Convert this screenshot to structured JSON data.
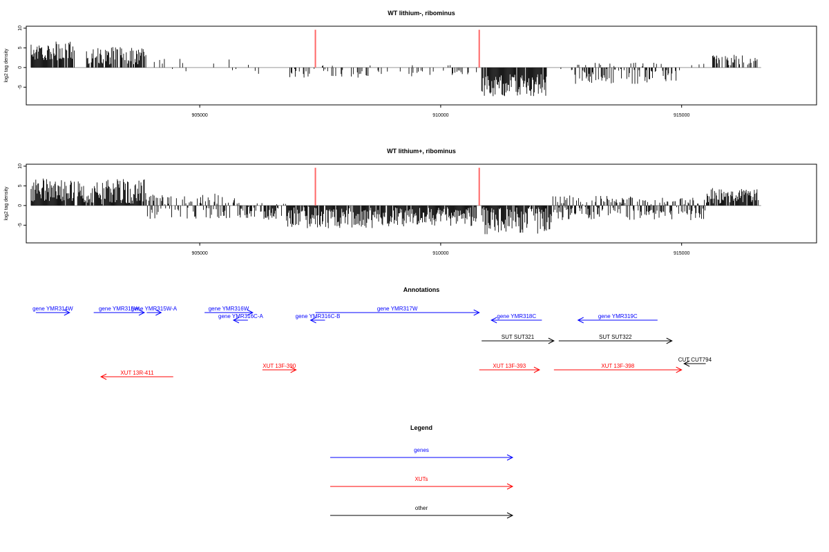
{
  "chart_data": [
    {
      "type": "bar",
      "title": "WT lithium-, ribominus",
      "ylabel": "log2 tag density",
      "xlim": [
        901400,
        917800
      ],
      "ylim": [
        -9.5,
        10.5
      ],
      "yticks": [
        "10",
        "5",
        "0",
        "-5"
      ],
      "ytick_values": [
        10,
        5,
        0,
        -5
      ],
      "xticks": [
        "905000",
        "910000",
        "915000"
      ],
      "xtick_values": [
        905000,
        910000,
        915000
      ],
      "highlight_color": "#ff6666",
      "highlights": [
        {
          "x": 907400,
          "y": 9.6
        },
        {
          "x": 910800,
          "y": 9.6
        }
      ],
      "segments": [
        {
          "from": 901500,
          "to": 902400,
          "level": 4.2,
          "spread": 2.5,
          "density": 0.9
        },
        {
          "from": 902650,
          "to": 903900,
          "level": 3.0,
          "spread": 2.2,
          "density": 0.8
        },
        {
          "from": 904000,
          "to": 905800,
          "level": 0.0,
          "spread": 2.5,
          "density": 0.12
        },
        {
          "from": 905800,
          "to": 906800,
          "level": 0.0,
          "spread": 2.0,
          "density": 0.05
        },
        {
          "from": 906800,
          "to": 908600,
          "level": -1.0,
          "spread": 1.6,
          "density": 0.35
        },
        {
          "from": 908600,
          "to": 910750,
          "level": -0.8,
          "spread": 1.6,
          "density": 0.25
        },
        {
          "from": 910850,
          "to": 912200,
          "level": -4.5,
          "spread": 2.8,
          "density": 0.95
        },
        {
          "from": 912200,
          "to": 912700,
          "level": 0.0,
          "spread": 0.8,
          "density": 0.05
        },
        {
          "from": 912700,
          "to": 914900,
          "level": -1.5,
          "spread": 2.8,
          "density": 0.55
        },
        {
          "from": 914900,
          "to": 915600,
          "level": 0.0,
          "spread": 1.0,
          "density": 0.1
        },
        {
          "from": 915600,
          "to": 916600,
          "level": 2.0,
          "spread": 1.5,
          "density": 0.45
        }
      ]
    },
    {
      "type": "bar",
      "title": "WT lithium+, ribominus",
      "ylabel": "log2 tag density",
      "xlim": [
        901400,
        917800
      ],
      "ylim": [
        -9.5,
        10.5
      ],
      "yticks": [
        "10",
        "5",
        "0",
        "-5"
      ],
      "ytick_values": [
        10,
        5,
        0,
        -5
      ],
      "xticks": [
        "905000",
        "910000",
        "915000"
      ],
      "xtick_values": [
        905000,
        910000,
        915000
      ],
      "highlight_color": "#ff6666",
      "highlights": [
        {
          "x": 907400,
          "y": 9.6
        },
        {
          "x": 910800,
          "y": 9.6
        }
      ],
      "segments": [
        {
          "from": 901500,
          "to": 902400,
          "level": 4.0,
          "spread": 3.0,
          "density": 0.95
        },
        {
          "from": 902450,
          "to": 903900,
          "level": 3.5,
          "spread": 3.2,
          "density": 0.95
        },
        {
          "from": 903900,
          "to": 905800,
          "level": -0.2,
          "spread": 3.2,
          "density": 0.7
        },
        {
          "from": 905800,
          "to": 906800,
          "level": -1.5,
          "spread": 2.2,
          "density": 0.7
        },
        {
          "from": 906800,
          "to": 908600,
          "level": -3.0,
          "spread": 2.8,
          "density": 0.9
        },
        {
          "from": 908600,
          "to": 910750,
          "level": -2.8,
          "spread": 2.5,
          "density": 0.9
        },
        {
          "from": 910850,
          "to": 912300,
          "level": -3.5,
          "spread": 3.8,
          "density": 0.98
        },
        {
          "from": 912300,
          "to": 914000,
          "level": -0.5,
          "spread": 3.2,
          "density": 0.85
        },
        {
          "from": 914000,
          "to": 915500,
          "level": -0.8,
          "spread": 3.0,
          "density": 0.8
        },
        {
          "from": 915500,
          "to": 916600,
          "level": 2.5,
          "spread": 2.0,
          "density": 0.85
        }
      ]
    }
  ],
  "annotations": {
    "title": "Annotations",
    "features": [
      {
        "label": "gene YMR314W",
        "start": 901600,
        "end": 902300,
        "dir": "right",
        "color": "#0000ff",
        "row": 0
      },
      {
        "label": "gene YMR315W",
        "start": 902800,
        "end": 903850,
        "dir": "right",
        "color": "#0000ff",
        "row": 0
      },
      {
        "label": "gene YMR315W-A",
        "start": 903900,
        "end": 904200,
        "dir": "right",
        "color": "#0000ff",
        "row": 0
      },
      {
        "label": "gene YMR316W",
        "start": 905100,
        "end": 906100,
        "dir": "right",
        "color": "#0000ff",
        "row": 0
      },
      {
        "label": "gene YMR316C-A",
        "start": 905700,
        "end": 906000,
        "dir": "left",
        "color": "#0000ff",
        "row": 1
      },
      {
        "label": "gene YMR316C-B",
        "start": 907300,
        "end": 907600,
        "dir": "left",
        "color": "#0000ff",
        "row": 1
      },
      {
        "label": "gene YMR317W",
        "start": 907400,
        "end": 910800,
        "dir": "right",
        "color": "#0000ff",
        "row": 0
      },
      {
        "label": "gene YMR318C",
        "start": 911050,
        "end": 912100,
        "dir": "left",
        "color": "#0000ff",
        "row": 1
      },
      {
        "label": "gene YMR319C",
        "start": 912850,
        "end": 914500,
        "dir": "left",
        "color": "#0000ff",
        "row": 1
      },
      {
        "label": "SUT SUT321",
        "start": 910850,
        "end": 912350,
        "dir": "right",
        "color": "#000000",
        "row": 2
      },
      {
        "label": "SUT SUT322",
        "start": 912450,
        "end": 914800,
        "dir": "right",
        "color": "#000000",
        "row": 2
      },
      {
        "label": "CUT CUT794",
        "start": 915050,
        "end": 915500,
        "dir": "left",
        "color": "#000000",
        "row": 3
      },
      {
        "label": "XUT 13R-411",
        "start": 902950,
        "end": 904450,
        "dir": "left",
        "color": "#ff0000",
        "row": 5
      },
      {
        "label": "XUT 13F-390",
        "start": 906300,
        "end": 907000,
        "dir": "right",
        "color": "#ff0000",
        "row": 4
      },
      {
        "label": "XUT 13F-393",
        "start": 910800,
        "end": 912050,
        "dir": "right",
        "color": "#ff0000",
        "row": 4
      },
      {
        "label": "XUT 13F-398",
        "start": 912350,
        "end": 915000,
        "dir": "right",
        "color": "#ff0000",
        "row": 4
      }
    ]
  },
  "legend": {
    "title": "Legend",
    "items": [
      {
        "label": "genes",
        "color": "#0000ff"
      },
      {
        "label": "XUTs",
        "color": "#ff0000"
      },
      {
        "label": "other",
        "color": "#000000"
      }
    ]
  }
}
